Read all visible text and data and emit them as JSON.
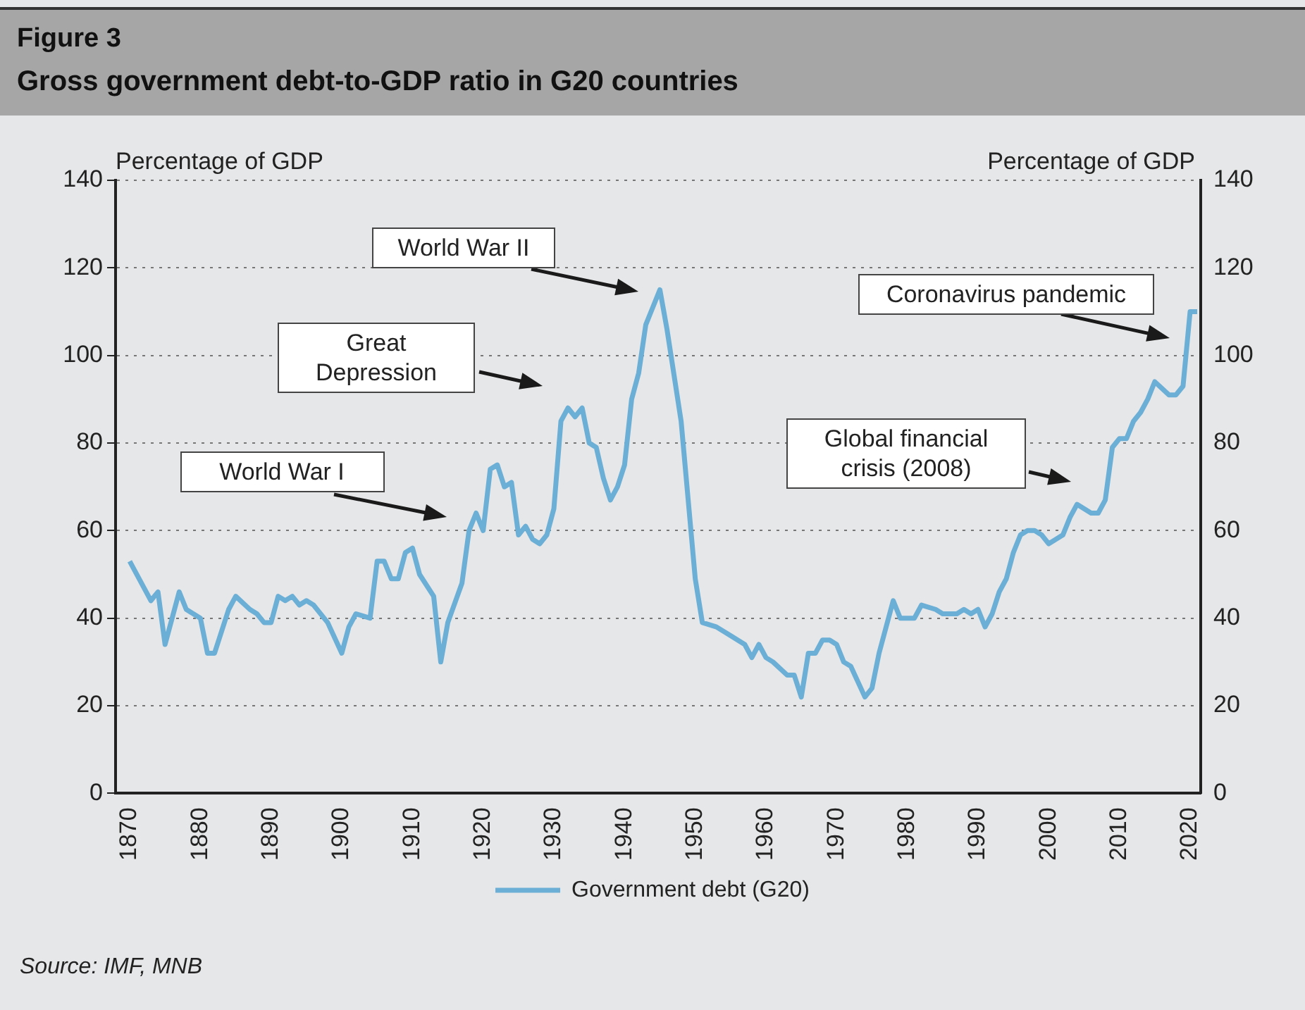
{
  "chart_data": {
    "type": "line",
    "title": "Gross government debt-to-GDP ratio in G20 countries",
    "subtitle": "Figure 3",
    "ylabel": "Percentage of GDP",
    "y2label": "Percentage of GDP",
    "x": [
      1870,
      1873,
      1874,
      1875,
      1877,
      1878,
      1880,
      1881,
      1882,
      1884,
      1885,
      1887,
      1888,
      1889,
      1890,
      1891,
      1892,
      1893,
      1894,
      1895,
      1896,
      1898,
      1900,
      1901,
      1902,
      1904,
      1905,
      1906,
      1907,
      1908,
      1909,
      1910,
      1911,
      1913,
      1914,
      1915,
      1917,
      1918,
      1919,
      1920,
      1921,
      1922,
      1923,
      1924,
      1925,
      1926,
      1927,
      1928,
      1929,
      1930,
      1931,
      1932,
      1933,
      1934,
      1935,
      1936,
      1937,
      1938,
      1939,
      1940,
      1941,
      1942,
      1943,
      1944,
      1945,
      1946,
      1948,
      1950,
      1951,
      1953,
      1955,
      1957,
      1958,
      1959,
      1960,
      1961,
      1963,
      1964,
      1965,
      1966,
      1967,
      1968,
      1969,
      1970,
      1971,
      1972,
      1974,
      1975,
      1976,
      1977,
      1978,
      1979,
      1981,
      1982,
      1984,
      1985,
      1987,
      1988,
      1989,
      1990,
      1991,
      1992,
      1993,
      1994,
      1995,
      1996,
      1997,
      1998,
      1999,
      2000,
      2002,
      2003,
      2004,
      2006,
      2007,
      2008,
      2009,
      2010,
      2011,
      2012,
      2013,
      2014,
      2015,
      2017,
      2018,
      2019,
      2020,
      2021
    ],
    "series": [
      {
        "name": "Government debt (G20)",
        "color": "#6baed6",
        "values": [
          53,
          44,
          46,
          34,
          46,
          42,
          40,
          32,
          32,
          42,
          45,
          42,
          41,
          39,
          39,
          45,
          44,
          45,
          43,
          44,
          43,
          39,
          32,
          38,
          41,
          40,
          53,
          53,
          49,
          49,
          55,
          56,
          50,
          45,
          30,
          39,
          48,
          60,
          64,
          60,
          74,
          75,
          70,
          71,
          59,
          61,
          58,
          57,
          59,
          65,
          85,
          88,
          86,
          88,
          80,
          79,
          72,
          67,
          70,
          75,
          90,
          96,
          107,
          111,
          115,
          106,
          85,
          49,
          39,
          38,
          36,
          34,
          31,
          34,
          31,
          30,
          27,
          27,
          22,
          32,
          32,
          35,
          35,
          34,
          30,
          29,
          22,
          24,
          32,
          38,
          44,
          40,
          40,
          43,
          42,
          41,
          41,
          42,
          41,
          42,
          38,
          41,
          46,
          49,
          55,
          59,
          60,
          60,
          59,
          57,
          59,
          63,
          66,
          64,
          64,
          67,
          79,
          81,
          81,
          85,
          87,
          90,
          94,
          91,
          91,
          93,
          110,
          110
        ]
      }
    ],
    "xlim": [
      1868,
      2021.5
    ],
    "xticks": [
      1870,
      1880,
      1890,
      1900,
      1910,
      1920,
      1930,
      1940,
      1950,
      1960,
      1970,
      1980,
      1990,
      2000,
      2010,
      2020
    ],
    "ylim": [
      0,
      140
    ],
    "yticks": [
      0,
      20,
      40,
      60,
      80,
      100,
      120,
      140
    ],
    "y2lim": [
      0,
      140
    ],
    "y2ticks": [
      0,
      20,
      40,
      60,
      80,
      100,
      120,
      140
    ],
    "grid": "y",
    "legend": "bottom",
    "marker": "none",
    "line_style": "solid",
    "annotations": [
      "World War I",
      "Great Depression",
      "World War II",
      "Global financial crisis (2008)",
      "Coronavirus pandemic",
      "Source: IMF, MNB"
    ]
  }
}
